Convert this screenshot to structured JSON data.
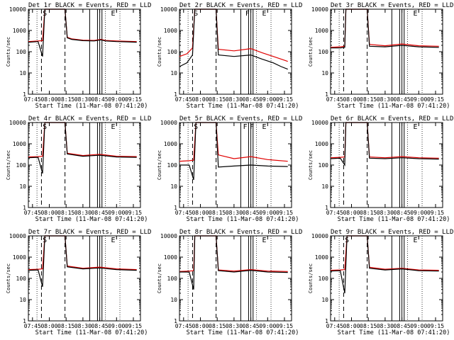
{
  "chart_data": [
    {
      "type": "line",
      "title": "Det 1r BLACK = Events, RED = LLD",
      "xlabel": "Start Time (11-Mar-08 07:41:20)",
      "ylabel": "Counts/sec",
      "ylim": [
        1,
        10000
      ],
      "yscale": "log",
      "x_ticks": [
        "07:45",
        "08:00",
        "08:15",
        "08:30",
        "08:45",
        "09:00",
        "09:15"
      ],
      "y_ticks": [
        "1",
        "10",
        "100",
        "1000",
        "10000"
      ],
      "markers": [
        {
          "label": "S",
          "time": "07:56"
        },
        {
          "label": "E",
          "time": "08:57"
        }
      ],
      "series": [
        {
          "name": "Events",
          "color": "#000000",
          "time": [
            "07:41",
            "07:50",
            "07:54",
            "07:56",
            "07:58",
            "08:14",
            "08:16",
            "08:20",
            "08:30",
            "08:40",
            "08:46",
            "08:50",
            "09:00",
            "09:10",
            "09:18"
          ],
          "values": [
            280,
            300,
            60,
            10000,
            10000,
            10000,
            450,
            380,
            330,
            320,
            360,
            320,
            300,
            290,
            280
          ]
        },
        {
          "name": "LLD",
          "color": "#e00000",
          "time": [
            "07:41",
            "07:50",
            "07:54",
            "07:56",
            "07:58",
            "08:14",
            "08:16",
            "08:20",
            "08:30",
            "08:40",
            "08:46",
            "08:50",
            "09:00",
            "09:10",
            "09:18"
          ],
          "values": [
            300,
            320,
            330,
            10000,
            10000,
            10000,
            480,
            400,
            350,
            340,
            380,
            340,
            320,
            310,
            300
          ]
        }
      ]
    },
    {
      "type": "line",
      "title": "Det 2r BLACK = Events, RED = LLD",
      "xlabel": "Start Time (11-Mar-08 07:41:20)",
      "ylabel": "Counts/sec",
      "ylim": [
        1,
        10000
      ],
      "yscale": "log",
      "x_ticks": [
        "07:45",
        "08:00",
        "08:15",
        "08:30",
        "08:45",
        "09:00",
        "09:15"
      ],
      "y_ticks": [
        "1",
        "10",
        "100",
        "1000",
        "10000"
      ],
      "markers": [
        {
          "label": "S",
          "time": "07:56"
        },
        {
          "label": "F",
          "time": "08:42"
        },
        {
          "label": "E",
          "time": "08:57"
        }
      ],
      "series": [
        {
          "name": "Events",
          "color": "#000000",
          "time": [
            "07:41",
            "07:48",
            "07:53",
            "07:55",
            "07:57",
            "08:14",
            "08:16",
            "08:30",
            "08:45",
            "08:55",
            "09:05",
            "09:12",
            "09:18"
          ],
          "values": [
            20,
            30,
            70,
            10000,
            10000,
            10000,
            70,
            60,
            70,
            45,
            30,
            20,
            15
          ]
        },
        {
          "name": "LLD",
          "color": "#e00000",
          "time": [
            "07:41",
            "07:48",
            "07:53",
            "07:55",
            "07:57",
            "08:14",
            "08:16",
            "08:30",
            "08:45",
            "08:55",
            "09:05",
            "09:12",
            "09:18"
          ],
          "values": [
            60,
            80,
            150,
            10000,
            10000,
            10000,
            130,
            110,
            140,
            90,
            60,
            45,
            35
          ]
        }
      ]
    },
    {
      "type": "line",
      "title": "Det 3r BLACK = Events, RED = LLD",
      "xlabel": "Start Time (11-Mar-08 07:41:20)",
      "ylabel": "Counts/sec",
      "ylim": [
        1,
        10000
      ],
      "yscale": "log",
      "x_ticks": [
        "07:45",
        "08:00",
        "08:15",
        "08:30",
        "08:45",
        "09:00",
        "09:15"
      ],
      "y_ticks": [
        "1",
        "10",
        "100",
        "1000",
        "10000"
      ],
      "markers": [
        {
          "label": "E",
          "time": "08:57"
        }
      ],
      "series": [
        {
          "name": "Events",
          "color": "#000000",
          "time": [
            "07:41",
            "07:50",
            "07:54",
            "07:55",
            "07:57",
            "08:14",
            "08:16",
            "08:30",
            "08:45",
            "09:00",
            "09:18"
          ],
          "values": [
            150,
            150,
            160,
            10000,
            10000,
            10000,
            180,
            170,
            200,
            170,
            160
          ]
        },
        {
          "name": "LLD",
          "color": "#e00000",
          "time": [
            "07:41",
            "07:50",
            "07:54",
            "07:55",
            "07:57",
            "08:14",
            "08:16",
            "08:30",
            "08:45",
            "09:00",
            "09:18"
          ],
          "values": [
            160,
            170,
            180,
            10000,
            10000,
            10000,
            220,
            190,
            230,
            190,
            180
          ]
        }
      ]
    },
    {
      "type": "line",
      "title": "Det 4r BLACK = Events, RED = LLD",
      "xlabel": "Start Time (11-Mar-08 07:41:20)",
      "ylabel": "Counts/sec",
      "ylim": [
        1,
        10000
      ],
      "yscale": "log",
      "x_ticks": [
        "07:45",
        "08:00",
        "08:15",
        "08:30",
        "08:45",
        "09:00",
        "09:15"
      ],
      "y_ticks": [
        "1",
        "10",
        "100",
        "1000",
        "10000"
      ],
      "markers": [
        {
          "label": "S",
          "time": "07:56"
        },
        {
          "label": "E",
          "time": "08:57"
        }
      ],
      "series": [
        {
          "name": "Events",
          "color": "#000000",
          "time": [
            "07:41",
            "07:50",
            "07:54",
            "07:56",
            "07:58",
            "08:14",
            "08:16",
            "08:30",
            "08:45",
            "09:00",
            "09:18"
          ],
          "values": [
            220,
            230,
            40,
            10000,
            10000,
            10000,
            330,
            260,
            290,
            240,
            230
          ]
        },
        {
          "name": "LLD",
          "color": "#e00000",
          "time": [
            "07:41",
            "07:50",
            "07:54",
            "07:56",
            "07:58",
            "08:14",
            "08:16",
            "08:30",
            "08:45",
            "09:00",
            "09:18"
          ],
          "values": [
            240,
            250,
            260,
            10000,
            10000,
            10000,
            360,
            280,
            320,
            260,
            250
          ]
        }
      ]
    },
    {
      "type": "line",
      "title": "Det 5r BLACK = Events, RED = LLD",
      "xlabel": "Start Time (11-Mar-08 07:41:20)",
      "ylabel": "Counts/sec",
      "ylim": [
        1,
        10000
      ],
      "yscale": "log",
      "x_ticks": [
        "07:45",
        "08:00",
        "08:15",
        "08:30",
        "08:45",
        "09:00",
        "09:15"
      ],
      "y_ticks": [
        "1",
        "10",
        "100",
        "1000",
        "10000"
      ],
      "markers": [
        {
          "label": "S",
          "time": "07:56"
        },
        {
          "label": "F",
          "time": "08:40"
        },
        {
          "label": "F",
          "time": "08:46"
        },
        {
          "label": "E",
          "time": "08:57"
        }
      ],
      "series": [
        {
          "name": "Events",
          "color": "#000000",
          "time": [
            "07:41",
            "07:50",
            "07:54",
            "07:56",
            "07:58",
            "08:14",
            "08:16",
            "08:30",
            "08:45",
            "09:00",
            "09:18"
          ],
          "values": [
            100,
            100,
            20,
            10000,
            10000,
            10000,
            80,
            90,
            100,
            90,
            85
          ]
        },
        {
          "name": "LLD",
          "color": "#e00000",
          "time": [
            "07:41",
            "07:50",
            "07:54",
            "07:56",
            "07:58",
            "08:14",
            "08:16",
            "08:30",
            "08:45",
            "09:00",
            "09:18"
          ],
          "values": [
            150,
            160,
            170,
            10000,
            10000,
            10000,
            300,
            200,
            250,
            180,
            150
          ]
        }
      ]
    },
    {
      "type": "line",
      "title": "Det 6r BLACK = Events, RED = LLD",
      "xlabel": "Start Time (11-Mar-08 07:41:20)",
      "ylabel": "Counts/sec",
      "ylim": [
        1,
        10000
      ],
      "yscale": "log",
      "x_ticks": [
        "07:45",
        "08:00",
        "08:15",
        "08:30",
        "08:45",
        "09:00",
        "09:15"
      ],
      "y_ticks": [
        "1",
        "10",
        "100",
        "1000",
        "10000"
      ],
      "markers": [
        {
          "label": "E",
          "time": "08:57"
        }
      ],
      "series": [
        {
          "name": "Events",
          "color": "#000000",
          "time": [
            "07:41",
            "07:50",
            "07:54",
            "07:55",
            "07:57",
            "08:14",
            "08:16",
            "08:30",
            "08:45",
            "09:00",
            "09:18"
          ],
          "values": [
            200,
            210,
            100,
            10000,
            10000,
            10000,
            210,
            200,
            220,
            200,
            190
          ]
        },
        {
          "name": "LLD",
          "color": "#e00000",
          "time": [
            "07:41",
            "07:50",
            "07:54",
            "07:55",
            "07:57",
            "08:14",
            "08:16",
            "08:30",
            "08:45",
            "09:00",
            "09:18"
          ],
          "values": [
            220,
            230,
            240,
            10000,
            10000,
            10000,
            240,
            220,
            250,
            220,
            210
          ]
        }
      ]
    },
    {
      "type": "line",
      "title": "Det 7r BLACK = Events, RED = LLD",
      "xlabel": "Start Time (11-Mar-08 07:41:20)",
      "ylabel": "Counts/sec",
      "ylim": [
        1,
        10000
      ],
      "yscale": "log",
      "x_ticks": [
        "07:45",
        "08:00",
        "08:15",
        "08:30",
        "08:45",
        "09:00",
        "09:15"
      ],
      "y_ticks": [
        "1",
        "10",
        "100",
        "1000",
        "10000"
      ],
      "markers": [
        {
          "label": "S",
          "time": "07:56"
        },
        {
          "label": "E",
          "time": "08:57"
        }
      ],
      "series": [
        {
          "name": "Events",
          "color": "#000000",
          "time": [
            "07:41",
            "07:50",
            "07:54",
            "07:56",
            "07:58",
            "08:14",
            "08:16",
            "08:30",
            "08:45",
            "09:00",
            "09:18"
          ],
          "values": [
            240,
            250,
            40,
            10000,
            10000,
            10000,
            350,
            280,
            310,
            260,
            240
          ]
        },
        {
          "name": "LLD",
          "color": "#e00000",
          "time": [
            "07:41",
            "07:50",
            "07:54",
            "07:56",
            "07:58",
            "08:14",
            "08:16",
            "08:30",
            "08:45",
            "09:00",
            "09:18"
          ],
          "values": [
            260,
            270,
            280,
            10000,
            10000,
            10000,
            380,
            300,
            340,
            280,
            260
          ]
        }
      ]
    },
    {
      "type": "line",
      "title": "Det 8r BLACK = Events, RED = LLD",
      "xlabel": "Start Time (11-Mar-08 07:41:20)",
      "ylabel": "Counts/sec",
      "ylim": [
        1,
        10000
      ],
      "yscale": "log",
      "x_ticks": [
        "07:45",
        "08:00",
        "08:15",
        "08:30",
        "08:45",
        "09:00",
        "09:15"
      ],
      "y_ticks": [
        "1",
        "10",
        "100",
        "1000",
        "10000"
      ],
      "markers": [
        {
          "label": "E",
          "time": "08:57"
        }
      ],
      "series": [
        {
          "name": "Events",
          "color": "#000000",
          "time": [
            "07:41",
            "07:50",
            "07:54",
            "07:55",
            "07:57",
            "08:14",
            "08:16",
            "08:30",
            "08:45",
            "09:00",
            "09:18"
          ],
          "values": [
            200,
            200,
            30,
            10000,
            10000,
            10000,
            230,
            200,
            240,
            200,
            190
          ]
        },
        {
          "name": "LLD",
          "color": "#e00000",
          "time": [
            "07:41",
            "07:50",
            "07:54",
            "07:55",
            "07:57",
            "08:14",
            "08:16",
            "08:30",
            "08:45",
            "09:00",
            "09:18"
          ],
          "values": [
            210,
            220,
            230,
            10000,
            10000,
            10000,
            250,
            220,
            260,
            220,
            210
          ]
        }
      ]
    },
    {
      "type": "line",
      "title": "Det 9r BLACK = Events, RED = LLD",
      "xlabel": "Start Time (11-Mar-08 07:41:20)",
      "ylabel": "Counts/sec",
      "ylim": [
        1,
        10000
      ],
      "yscale": "log",
      "x_ticks": [
        "07:45",
        "08:00",
        "08:15",
        "08:30",
        "08:45",
        "09:00",
        "09:15"
      ],
      "y_ticks": [
        "1",
        "10",
        "100",
        "1000",
        "10000"
      ],
      "markers": [
        {
          "label": "S",
          "time": "07:56"
        },
        {
          "label": "E",
          "time": "08:57"
        }
      ],
      "series": [
        {
          "name": "Events",
          "color": "#000000",
          "time": [
            "07:41",
            "07:50",
            "07:54",
            "07:56",
            "07:58",
            "08:14",
            "08:16",
            "08:30",
            "08:45",
            "09:00",
            "09:18"
          ],
          "values": [
            220,
            230,
            20,
            10000,
            10000,
            10000,
            300,
            250,
            280,
            230,
            220
          ]
        },
        {
          "name": "LLD",
          "color": "#e00000",
          "time": [
            "07:41",
            "07:50",
            "07:54",
            "07:56",
            "07:58",
            "08:14",
            "08:16",
            "08:30",
            "08:45",
            "09:00",
            "09:18"
          ],
          "values": [
            240,
            250,
            260,
            10000,
            10000,
            10000,
            330,
            270,
            300,
            250,
            240
          ]
        }
      ]
    }
  ],
  "vertical_lines": {
    "solid": [
      "08:36",
      "08:43",
      "08:45",
      "08:47"
    ],
    "dashed": [
      "07:53",
      "08:14"
    ],
    "dotted": [
      "07:49",
      "08:50",
      "09:03"
    ]
  }
}
